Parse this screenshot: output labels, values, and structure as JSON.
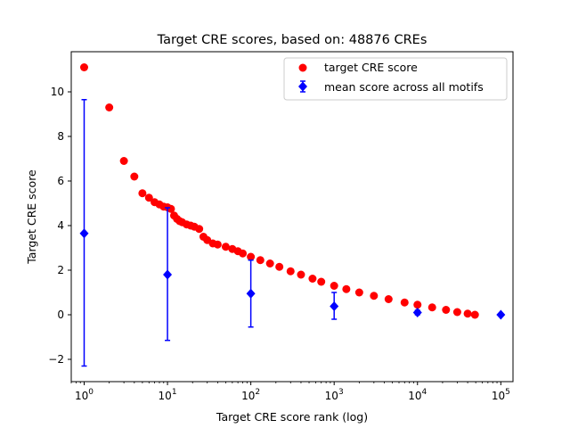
{
  "chart_data": {
    "type": "scatter",
    "title": "Target CRE scores, based on: 48876 CREs",
    "xlabel": "Target CRE score rank (log)",
    "ylabel": "Target CRE score",
    "xscale": "log",
    "xlim": [
      0.7,
      140000
    ],
    "ylim": [
      -3,
      11.8
    ],
    "grid": false,
    "legend_position": "top-right",
    "x_ticks": [
      {
        "value": 1,
        "base": "10",
        "exp": "0"
      },
      {
        "value": 10,
        "base": "10",
        "exp": "1"
      },
      {
        "value": 100,
        "base": "10",
        "exp": "2"
      },
      {
        "value": 1000,
        "base": "10",
        "exp": "3"
      },
      {
        "value": 10000,
        "base": "10",
        "exp": "4"
      },
      {
        "value": 100000,
        "base": "10",
        "exp": "5"
      }
    ],
    "y_ticks": [
      {
        "value": -2,
        "label": "−2"
      },
      {
        "value": 0,
        "label": "0"
      },
      {
        "value": 2,
        "label": "2"
      },
      {
        "value": 4,
        "label": "4"
      },
      {
        "value": 6,
        "label": "6"
      },
      {
        "value": 8,
        "label": "8"
      },
      {
        "value": 10,
        "label": "10"
      }
    ],
    "series": [
      {
        "name": "target CRE score",
        "kind": "scatter",
        "marker": "circle",
        "color": "#ff0000",
        "points": [
          [
            1,
            11.1
          ],
          [
            2,
            9.3
          ],
          [
            3,
            6.9
          ],
          [
            4,
            6.2
          ],
          [
            5,
            5.45
          ],
          [
            6,
            5.25
          ],
          [
            7,
            5.05
          ],
          [
            8,
            4.95
          ],
          [
            9,
            4.85
          ],
          [
            10,
            4.82
          ],
          [
            11,
            4.75
          ],
          [
            12,
            4.45
          ],
          [
            13,
            4.3
          ],
          [
            14,
            4.2
          ],
          [
            15,
            4.15
          ],
          [
            17,
            4.05
          ],
          [
            19,
            4.0
          ],
          [
            21,
            3.95
          ],
          [
            24,
            3.85
          ],
          [
            27,
            3.5
          ],
          [
            30,
            3.35
          ],
          [
            35,
            3.2
          ],
          [
            40,
            3.15
          ],
          [
            50,
            3.05
          ],
          [
            60,
            2.95
          ],
          [
            70,
            2.85
          ],
          [
            80,
            2.75
          ],
          [
            100,
            2.6
          ],
          [
            130,
            2.45
          ],
          [
            170,
            2.3
          ],
          [
            220,
            2.15
          ],
          [
            300,
            1.95
          ],
          [
            400,
            1.8
          ],
          [
            550,
            1.62
          ],
          [
            700,
            1.48
          ],
          [
            1000,
            1.3
          ],
          [
            1400,
            1.15
          ],
          [
            2000,
            1.0
          ],
          [
            3000,
            0.85
          ],
          [
            4500,
            0.7
          ],
          [
            7000,
            0.55
          ],
          [
            10000,
            0.45
          ],
          [
            15000,
            0.33
          ],
          [
            22000,
            0.22
          ],
          [
            30000,
            0.12
          ],
          [
            40000,
            0.05
          ],
          [
            48876,
            0.0
          ]
        ]
      },
      {
        "name": "mean score across all motifs",
        "kind": "errorbar",
        "marker": "diamond",
        "color": "#0000ff",
        "points": [
          {
            "x": 1,
            "y": 3.65,
            "low": -2.3,
            "high": 9.65
          },
          {
            "x": 10,
            "y": 1.8,
            "low": -1.15,
            "high": 4.8
          },
          {
            "x": 100,
            "y": 0.95,
            "low": -0.55,
            "high": 2.45
          },
          {
            "x": 1000,
            "y": 0.38,
            "low": -0.2,
            "high": 1.0
          },
          {
            "x": 10000,
            "y": 0.1,
            "low": 0.0,
            "high": 0.2
          },
          {
            "x": 100000,
            "y": 0.0,
            "low": 0.0,
            "high": 0.0
          }
        ]
      }
    ]
  }
}
